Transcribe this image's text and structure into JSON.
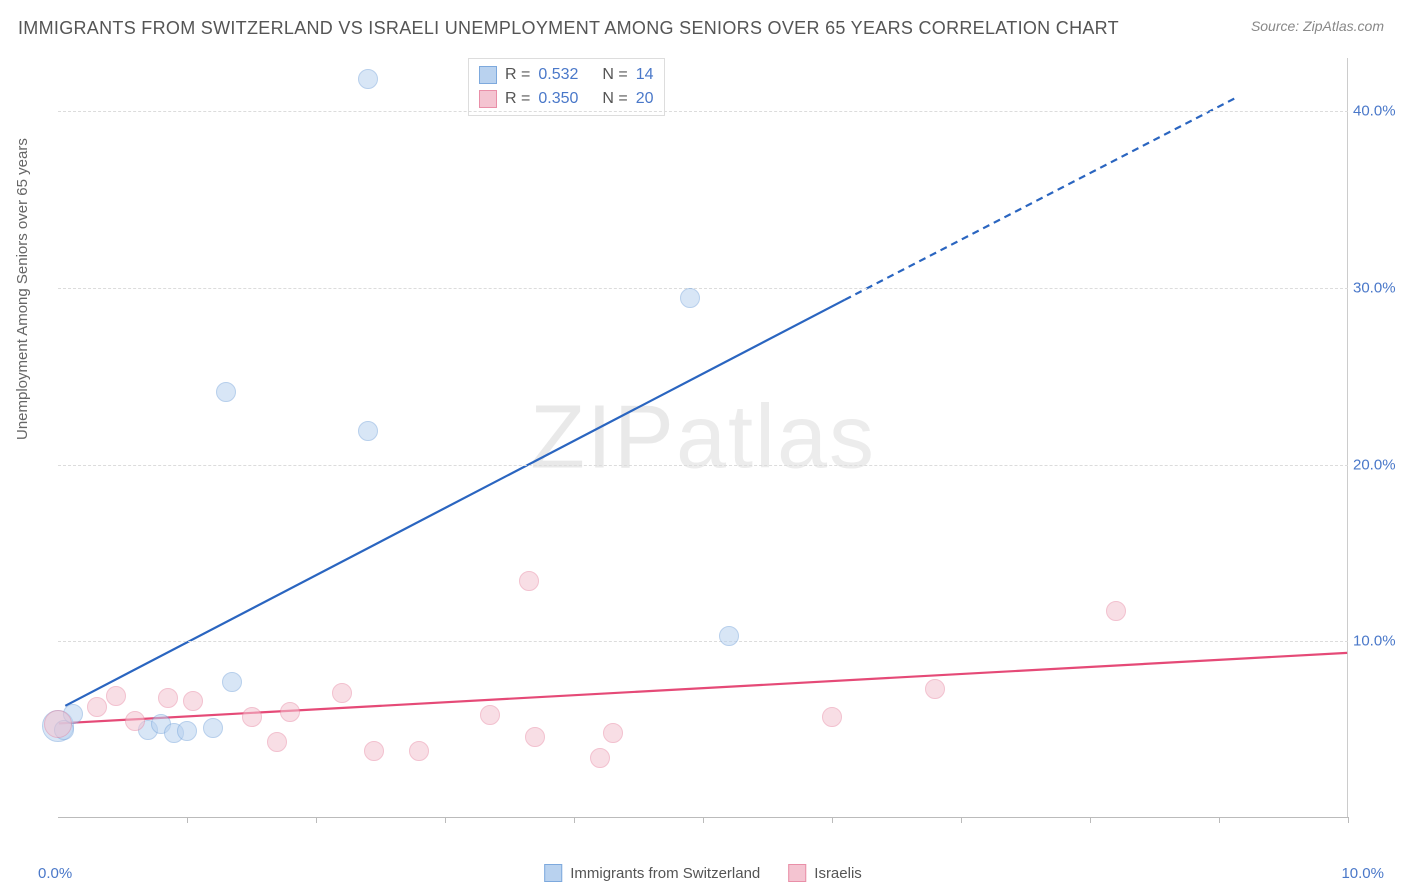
{
  "title": "IMMIGRANTS FROM SWITZERLAND VS ISRAELI UNEMPLOYMENT AMONG SENIORS OVER 65 YEARS CORRELATION CHART",
  "source": "Source: ZipAtlas.com",
  "y_axis_label": "Unemployment Among Seniors over 65 years",
  "x_min_label": "0.0%",
  "x_max_label": "10.0%",
  "watermark": "ZIPatlas",
  "chart": {
    "type": "scatter",
    "xlim": [
      0,
      10
    ],
    "ylim": [
      0,
      43
    ],
    "x_ticks": [
      1,
      2,
      3,
      4,
      5,
      6,
      7,
      8,
      9,
      10
    ],
    "y_gridlines": [
      {
        "value": 10,
        "label": "10.0%"
      },
      {
        "value": 20,
        "label": "20.0%"
      },
      {
        "value": 30,
        "label": "30.0%"
      },
      {
        "value": 40,
        "label": "40.0%"
      }
    ],
    "background_color": "#ffffff",
    "grid_color": "#dcdcdc",
    "axis_color": "#bbbbbb",
    "series": [
      {
        "name": "Immigrants from Switzerland",
        "color_fill": "#b9d2ef",
        "color_stroke": "#7da9dd",
        "fill_opacity": 0.55,
        "marker_radius": 10,
        "r_value": "0.532",
        "n_value": "14",
        "trend": {
          "color": "#2a65c0",
          "width": 2.2,
          "solid_from": [
            0.05,
            6.3
          ],
          "solid_to": [
            6.1,
            29.3
          ],
          "dashed_to": [
            9.15,
            40.8
          ]
        },
        "points": [
          {
            "x": 0.0,
            "y": 5.2,
            "r": 16
          },
          {
            "x": 0.05,
            "y": 5.0,
            "r": 10
          },
          {
            "x": 0.12,
            "y": 5.9,
            "r": 10
          },
          {
            "x": 0.7,
            "y": 5.0,
            "r": 10
          },
          {
            "x": 0.8,
            "y": 5.3,
            "r": 10
          },
          {
            "x": 0.9,
            "y": 4.8,
            "r": 10
          },
          {
            "x": 1.0,
            "y": 4.9,
            "r": 10
          },
          {
            "x": 1.2,
            "y": 5.1,
            "r": 10
          },
          {
            "x": 1.35,
            "y": 7.7,
            "r": 10
          },
          {
            "x": 2.4,
            "y": 41.8,
            "r": 10
          },
          {
            "x": 1.3,
            "y": 24.1,
            "r": 10
          },
          {
            "x": 2.4,
            "y": 21.9,
            "r": 10
          },
          {
            "x": 4.9,
            "y": 29.4,
            "r": 10
          },
          {
            "x": 5.2,
            "y": 10.3,
            "r": 10
          }
        ]
      },
      {
        "name": "Israelis",
        "color_fill": "#f4c4d1",
        "color_stroke": "#e98fa8",
        "fill_opacity": 0.55,
        "marker_radius": 10,
        "r_value": "0.350",
        "n_value": "20",
        "trend": {
          "color": "#e54a77",
          "width": 2.2,
          "solid_from": [
            0.0,
            5.3
          ],
          "solid_to": [
            10.0,
            9.3
          ],
          "dashed_to": null
        },
        "points": [
          {
            "x": 0.0,
            "y": 5.3,
            "r": 14
          },
          {
            "x": 0.3,
            "y": 6.3,
            "r": 10
          },
          {
            "x": 0.45,
            "y": 6.9,
            "r": 10
          },
          {
            "x": 0.6,
            "y": 5.5,
            "r": 10
          },
          {
            "x": 0.85,
            "y": 6.8,
            "r": 10
          },
          {
            "x": 1.05,
            "y": 6.6,
            "r": 10
          },
          {
            "x": 1.5,
            "y": 5.7,
            "r": 10
          },
          {
            "x": 1.7,
            "y": 4.3,
            "r": 10
          },
          {
            "x": 1.8,
            "y": 6.0,
            "r": 10
          },
          {
            "x": 2.2,
            "y": 7.1,
            "r": 10
          },
          {
            "x": 2.45,
            "y": 3.8,
            "r": 10
          },
          {
            "x": 2.8,
            "y": 3.8,
            "r": 10
          },
          {
            "x": 3.35,
            "y": 5.8,
            "r": 10
          },
          {
            "x": 3.65,
            "y": 13.4,
            "r": 10
          },
          {
            "x": 3.7,
            "y": 4.6,
            "r": 10
          },
          {
            "x": 4.2,
            "y": 3.4,
            "r": 10
          },
          {
            "x": 4.3,
            "y": 4.8,
            "r": 10
          },
          {
            "x": 6.0,
            "y": 5.7,
            "r": 10
          },
          {
            "x": 6.8,
            "y": 7.3,
            "r": 10
          },
          {
            "x": 8.2,
            "y": 11.7,
            "r": 10
          }
        ]
      }
    ]
  },
  "legend_label_immigrants": "Immigrants from Switzerland",
  "legend_label_israelis": "Israelis",
  "legend_r_prefix": "R =",
  "legend_n_prefix": "N ="
}
